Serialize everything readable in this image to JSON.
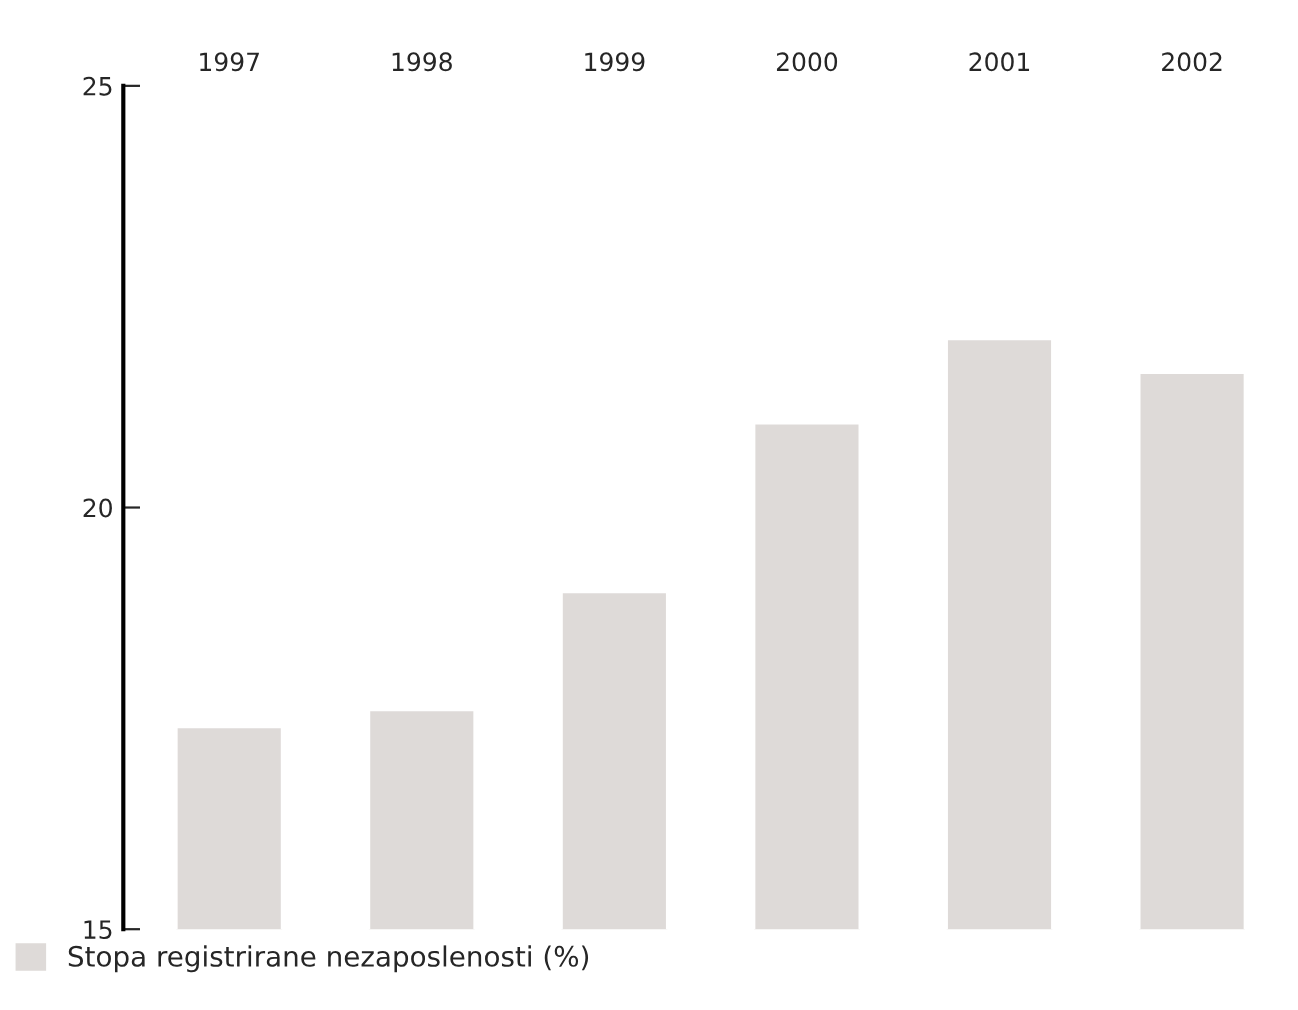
{
  "chart_data": {
    "type": "bar",
    "categories": [
      "1997",
      "1998",
      "1999",
      "2000",
      "2001",
      "2002"
    ],
    "series": [
      {
        "name": "Stopa registrirane nezaposlenosti (%)",
        "color": "#dedad8",
        "values": [
          17.4,
          17.6,
          19.0,
          21.0,
          22.0,
          21.6
        ]
      }
    ],
    "ylim": [
      15,
      25
    ],
    "yticks": [
      15,
      20,
      25
    ],
    "grid": false,
    "legend": "bottom left"
  }
}
